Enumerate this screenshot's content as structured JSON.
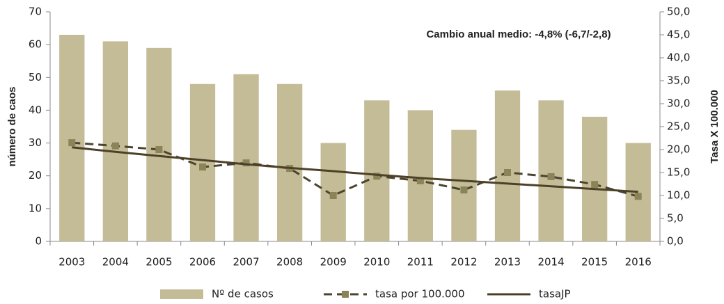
{
  "chart_data": {
    "type": "bar-line",
    "annotation": "Cambio anual medio: -4,8% (-6,7/-2,8)",
    "y_label": "número de caos",
    "y2_label": "Tasa X 100.000",
    "categories": [
      "2003",
      "2004",
      "2005",
      "2006",
      "2007",
      "2008",
      "2009",
      "2010",
      "2011",
      "2012",
      "2013",
      "2014",
      "2015",
      "2016"
    ],
    "series": [
      {
        "name": "Nº de casos",
        "type": "bar",
        "color": "#c4bc96",
        "values": [
          63,
          61,
          59,
          48,
          51,
          48,
          30,
          43,
          40,
          34,
          46,
          43,
          38,
          30
        ]
      },
      {
        "name": "tasa por 100.000",
        "type": "line",
        "axis": "y2",
        "color": "#4a4430",
        "marker_color": "#8a8458",
        "dashed": true,
        "values": [
          21.5,
          20.8,
          20.0,
          16.2,
          17.1,
          15.9,
          10.0,
          14.2,
          13.2,
          11.2,
          15.0,
          14.1,
          12.4,
          9.8
        ]
      },
      {
        "name": "tasaJP",
        "type": "line",
        "axis": "y2",
        "color": "#4d4028",
        "dashed": false,
        "values": [
          20.5,
          19.5,
          18.6,
          17.7,
          16.8,
          16.0,
          15.3,
          14.5,
          13.8,
          13.2,
          12.6,
          12.0,
          11.4,
          10.8
        ]
      }
    ],
    "ylim": [
      0,
      70
    ],
    "yticks": [
      0,
      10,
      20,
      30,
      40,
      50,
      60,
      70
    ],
    "y2lim": [
      0,
      50
    ],
    "y2ticks": [
      {
        "value": 0,
        "label": "0,0"
      },
      {
        "value": 5,
        "label": "5,0"
      },
      {
        "value": 10,
        "label": "10,0"
      },
      {
        "value": 15,
        "label": "15,0"
      },
      {
        "value": 20,
        "label": "20,0"
      },
      {
        "value": 25,
        "label": "25,0"
      },
      {
        "value": 30,
        "label": "30,0"
      },
      {
        "value": 35,
        "label": "35,0"
      },
      {
        "value": 40,
        "label": "40,0"
      },
      {
        "value": 45,
        "label": "45,0"
      },
      {
        "value": 50,
        "label": "50,0"
      }
    ],
    "legend": "bottom"
  }
}
